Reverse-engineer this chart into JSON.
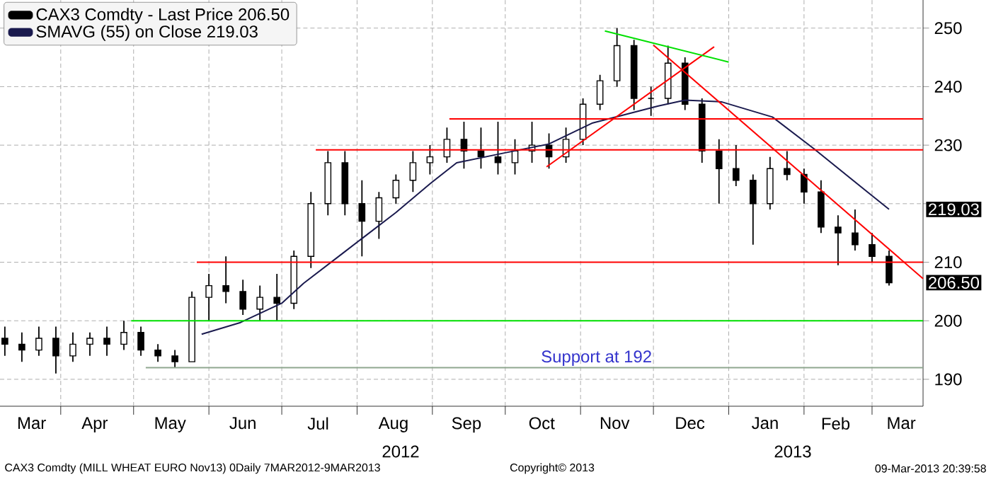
{
  "chart_data": {
    "type": "candlestick",
    "legend": "top left",
    "grid": true,
    "xlim": [
      "2012-03-07",
      "2013-03-22"
    ],
    "xticks": [
      {
        "value": "2012-03-20",
        "label": "Mar"
      },
      {
        "value": "2012-04-01",
        "label": null
      },
      {
        "value": "2012-04-15",
        "label": "Apr"
      },
      {
        "value": "2012-05-01",
        "label": null
      },
      {
        "value": "2012-05-16",
        "label": "May"
      },
      {
        "value": "2012-06-01",
        "label": null
      },
      {
        "value": "2012-06-15",
        "label": "Jun"
      },
      {
        "value": "2012-07-01",
        "label": null
      },
      {
        "value": "2012-07-16",
        "label": "Jul"
      },
      {
        "value": "2012-08-01",
        "label": null
      },
      {
        "value": "2012-08-16",
        "label": "Aug"
      },
      {
        "value": "2012-09-01",
        "label": null
      },
      {
        "value": "2012-09-15",
        "label": "Sep"
      },
      {
        "value": "2012-10-01",
        "label": null
      },
      {
        "value": "2012-10-16",
        "label": "Oct"
      },
      {
        "value": "2012-11-01",
        "label": null
      },
      {
        "value": "2012-11-15",
        "label": "Nov"
      },
      {
        "value": "2012-12-01",
        "label": null
      },
      {
        "value": "2012-12-16",
        "label": "Dec"
      },
      {
        "value": "2013-01-01",
        "label": null
      },
      {
        "value": "2013-01-16",
        "label": "Jan"
      },
      {
        "value": "2013-02-01",
        "label": null
      },
      {
        "value": "2013-02-14",
        "label": "Feb"
      },
      {
        "value": "2013-03-01",
        "label": null
      },
      {
        "value": "2013-03-13",
        "label": "Mar"
      }
    ],
    "ylim": [
      185.4,
      254.8
    ],
    "yticks": [
      190,
      200,
      210,
      {
        "value": 220,
        "label": null
      },
      230,
      240,
      250
    ],
    "series": [
      {
        "name": "CAX3 Comdty - Last Price 206.50",
        "type": "candlestick",
        "color": "#000000",
        "x": [
          "2012-03-09",
          "2012-03-16",
          "2012-03-23",
          "2012-03-30",
          "2012-04-06",
          "2012-04-13",
          "2012-04-20",
          "2012-04-27",
          "2012-05-04",
          "2012-05-11",
          "2012-05-18",
          "2012-05-25",
          "2012-06-01",
          "2012-06-08",
          "2012-06-15",
          "2012-06-22",
          "2012-06-29",
          "2012-07-06",
          "2012-07-13",
          "2012-07-20",
          "2012-07-27",
          "2012-08-03",
          "2012-08-10",
          "2012-08-17",
          "2012-08-24",
          "2012-08-31",
          "2012-09-07",
          "2012-09-14",
          "2012-09-21",
          "2012-09-28",
          "2012-10-05",
          "2012-10-12",
          "2012-10-19",
          "2012-10-26",
          "2012-11-02",
          "2012-11-09",
          "2012-11-16",
          "2012-11-23",
          "2012-11-30",
          "2012-12-07",
          "2012-12-14",
          "2012-12-21",
          "2012-12-28",
          "2013-01-04",
          "2013-01-11",
          "2013-01-18",
          "2013-01-25",
          "2013-02-01",
          "2013-02-08",
          "2013-02-15",
          "2013-02-22",
          "2013-03-01",
          "2013-03-08"
        ],
        "ohlc": [
          [
            197,
            199,
            194,
            196
          ],
          [
            196,
            198,
            193,
            195
          ],
          [
            195,
            199,
            194,
            197
          ],
          [
            197,
            199,
            191,
            194
          ],
          [
            194,
            198,
            193,
            196
          ],
          [
            196,
            198,
            194,
            197
          ],
          [
            197,
            199,
            194,
            196
          ],
          [
            196,
            200,
            195,
            198
          ],
          [
            198,
            199,
            194,
            195
          ],
          [
            195,
            196,
            193,
            194
          ],
          [
            194,
            195,
            192,
            193
          ],
          [
            193,
            205,
            193,
            204
          ],
          [
            204,
            208,
            200,
            206
          ],
          [
            206,
            211,
            203,
            205
          ],
          [
            205,
            207,
            201,
            202
          ],
          [
            202,
            206,
            200,
            204
          ],
          [
            204,
            208,
            200,
            203
          ],
          [
            203,
            212,
            202,
            211
          ],
          [
            211,
            222,
            209,
            220
          ],
          [
            220,
            229,
            218,
            227
          ],
          [
            227,
            229,
            218,
            220
          ],
          [
            220,
            224,
            211,
            217
          ],
          [
            217,
            222,
            214,
            221
          ],
          [
            221,
            225,
            220,
            224
          ],
          [
            224,
            229,
            222,
            227
          ],
          [
            227,
            230,
            225,
            228
          ],
          [
            228,
            233,
            227,
            231
          ],
          [
            231,
            234,
            226,
            229
          ],
          [
            229,
            233,
            226,
            228
          ],
          [
            228,
            234,
            225,
            227
          ],
          [
            227,
            231,
            225,
            229
          ],
          [
            229,
            234,
            227,
            230
          ],
          [
            230,
            232,
            226,
            228
          ],
          [
            228,
            233,
            227,
            231
          ],
          [
            231,
            238,
            230,
            237
          ],
          [
            237,
            242,
            236,
            241
          ],
          [
            241,
            250,
            240,
            247
          ],
          [
            247,
            248,
            236,
            238
          ],
          [
            238,
            240,
            235,
            238
          ],
          [
            238,
            247,
            237,
            244
          ],
          [
            244,
            245,
            236,
            237
          ],
          [
            237,
            238,
            227,
            229
          ],
          [
            229,
            231,
            220,
            226
          ],
          [
            226,
            230,
            223,
            224
          ],
          [
            224,
            225,
            213,
            220
          ],
          [
            220,
            228,
            219,
            226
          ],
          [
            226,
            229,
            224,
            225
          ],
          [
            225,
            226,
            220,
            222
          ],
          [
            222,
            224,
            215,
            216
          ],
          [
            216,
            218,
            209.5,
            215
          ],
          [
            215,
            219,
            212,
            213
          ],
          [
            213,
            215,
            210,
            211
          ],
          [
            211,
            212,
            206,
            206.5
          ]
        ]
      },
      {
        "name": "SMAVG (55) on Close 219.03",
        "type": "line",
        "color": "#1a1a4e",
        "x": [
          "2012-05-29",
          "2012-06-14",
          "2012-07-01",
          "2012-07-10",
          "2012-07-26",
          "2012-08-17",
          "2012-08-31",
          "2012-09-11",
          "2012-10-01",
          "2012-10-19",
          "2012-11-06",
          "2012-12-03",
          "2012-12-14",
          "2012-12-29",
          "2013-01-19",
          "2013-02-05",
          "2013-02-28",
          "2013-03-08"
        ],
        "values": [
          197.7,
          199.7,
          203,
          206.4,
          211.5,
          218.5,
          223.4,
          227,
          228.7,
          230.2,
          233.8,
          236.7,
          237.7,
          237.4,
          234.8,
          229.4,
          221.7,
          219.03
        ]
      },
      {
        "type": "line",
        "color": "#00e000",
        "x": [
          "2012-04-30",
          "2013-03-22"
        ],
        "values": [
          200,
          200
        ]
      },
      {
        "type": "line",
        "color": "#90a890",
        "x": [
          "2012-05-06",
          "2013-03-22"
        ],
        "values": [
          192,
          192
        ]
      },
      {
        "type": "line",
        "color": "#ff0000",
        "x": [
          "2012-05-27",
          "2013-03-22"
        ],
        "values": [
          210,
          210
        ]
      },
      {
        "type": "line",
        "color": "#ff0000",
        "x": [
          "2012-07-15",
          "2013-03-22"
        ],
        "values": [
          229.2,
          229.2
        ]
      },
      {
        "type": "line",
        "color": "#ff0000",
        "x": [
          "2012-09-08",
          "2013-03-22"
        ],
        "values": [
          234.5,
          234.5
        ]
      },
      {
        "type": "line",
        "color": "#ff0000",
        "x": [
          "2012-10-18",
          "2012-12-26"
        ],
        "values": [
          226.3,
          246.8
        ]
      },
      {
        "type": "line",
        "color": "#ff0000",
        "x": [
          "2012-12-01",
          "2013-03-22"
        ],
        "values": [
          247.1,
          207.2
        ]
      },
      {
        "type": "line",
        "color": "#00e000",
        "x": [
          "2012-11-11",
          "2013-01-01"
        ],
        "values": [
          249.5,
          244.2
        ]
      }
    ],
    "annotations": [
      {
        "text": "Support at 192",
        "x": "2012-10-15",
        "y": 192
      },
      {
        "text": "219.03",
        "x": "2013-03-08",
        "y": 219.03
      },
      {
        "text": "206.50",
        "x": "2013-03-08",
        "y": 206.5
      },
      "2012",
      "2013",
      "CAX3 Comdty (MILL WHEAT EURO  Nov13) 0Daily 7MAR2012-9MAR2013",
      "Copyright© 2013",
      "09-Mar-2013 20:39:58"
    ]
  }
}
